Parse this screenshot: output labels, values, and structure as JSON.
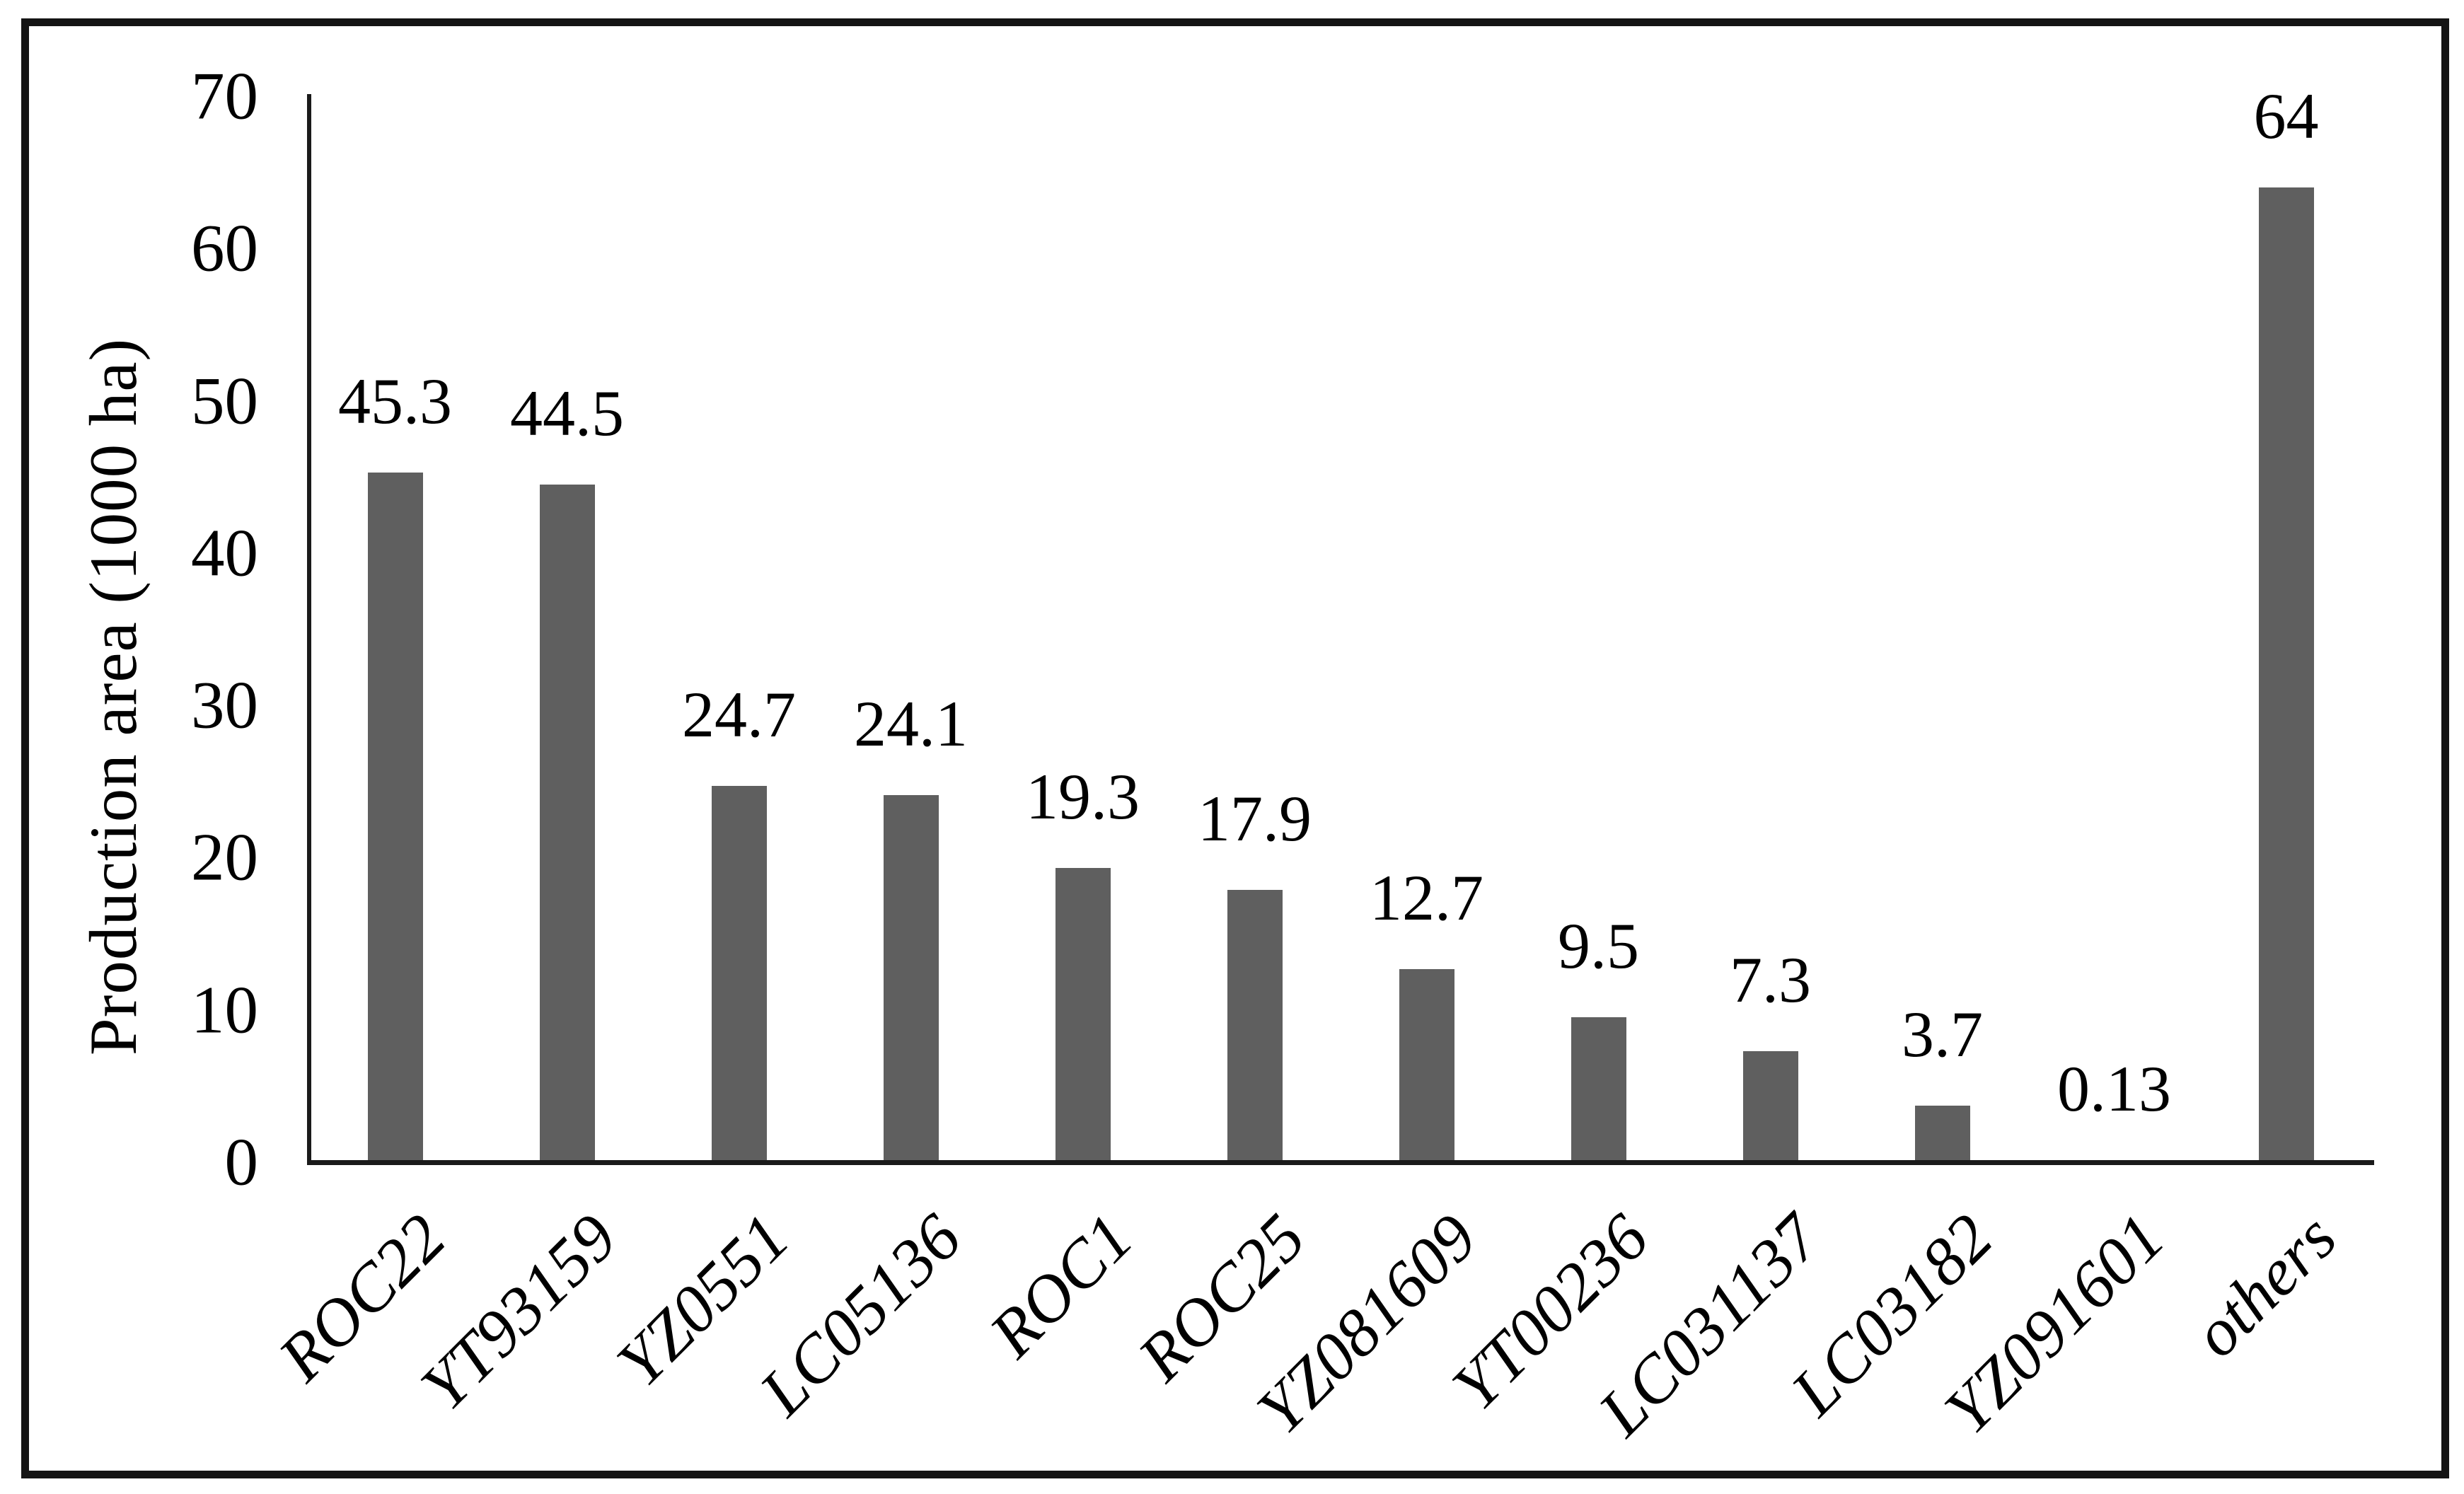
{
  "chart_data": {
    "type": "bar",
    "title": "",
    "xlabel": "",
    "ylabel": "Production area (1000 ha)",
    "categories": [
      "ROC22",
      "YT93159",
      "YZ0551",
      "LC05136",
      "ROC1",
      "ROC25",
      "YZ081609",
      "YT00236",
      "LC031137",
      "LC03182",
      "YZ091601",
      "others"
    ],
    "values": [
      45.3,
      44.5,
      24.7,
      24.1,
      19.3,
      17.9,
      12.7,
      9.5,
      7.3,
      3.7,
      0.13,
      64
    ],
    "value_labels": [
      "45.3",
      "44.5",
      "24.7",
      "24.1",
      "19.3",
      "17.9",
      "12.7",
      "9.5",
      "7.3",
      "3.7",
      "0.13",
      "64"
    ],
    "yticks": [
      0,
      10,
      20,
      30,
      40,
      50,
      60,
      70
    ],
    "ytick_labels": [
      "0",
      "10",
      "20",
      "30",
      "40",
      "50",
      "60",
      "70"
    ],
    "ylim": [
      0,
      70
    ],
    "grid": false,
    "legend_position": "none",
    "bar_color": "#5f5f5f",
    "frame_color": "#141414",
    "text_color": "#000000",
    "x_label_style": "italic, rotated 45 degrees",
    "background_color": "#ffffff"
  }
}
